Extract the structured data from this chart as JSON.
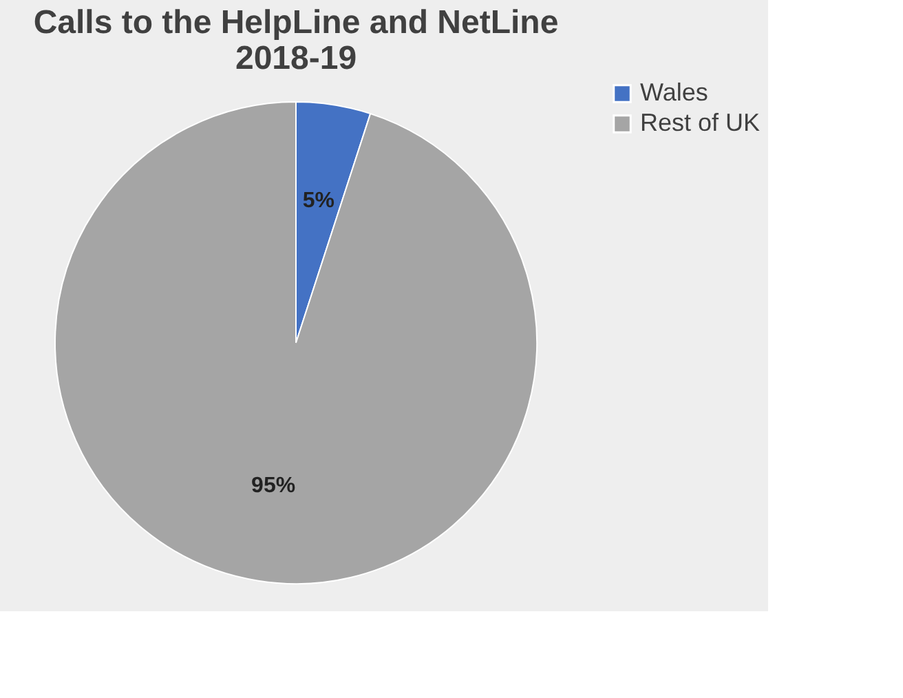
{
  "chart_data": {
    "type": "pie",
    "title": "Calls to the HelpLine and NetLine 2018-19",
    "categories": [
      "Wales",
      "Rest of UK"
    ],
    "values": [
      5,
      95
    ],
    "colors": [
      "#4472c4",
      "#a5a5a5"
    ],
    "value_labels": [
      "5%",
      "95%"
    ],
    "legend": "right"
  }
}
